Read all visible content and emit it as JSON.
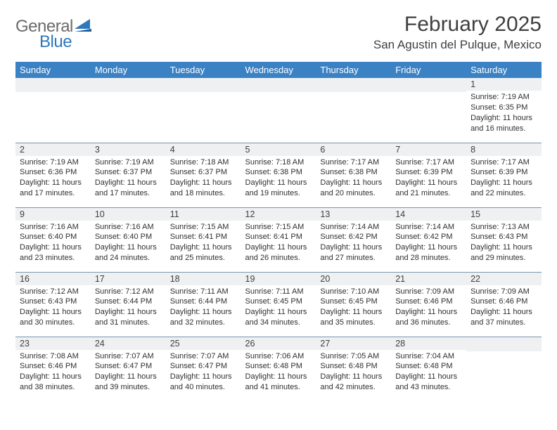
{
  "logo": {
    "general": "General",
    "blue": "Blue"
  },
  "title": "February 2025",
  "location": "San Agustin del Pulque, Mexico",
  "colors": {
    "header_bg": "#3b82c4",
    "header_text": "#ffffff",
    "daynum_bg": "#eef0f1",
    "rule": "#7a95ad",
    "logo_gray": "#6b6b6b",
    "logo_blue": "#2f78bd",
    "text": "#303030"
  },
  "weekdays": [
    "Sunday",
    "Monday",
    "Tuesday",
    "Wednesday",
    "Thursday",
    "Friday",
    "Saturday"
  ],
  "weeks": [
    [
      null,
      null,
      null,
      null,
      null,
      null,
      {
        "d": "1",
        "sr": "7:19 AM",
        "ss": "6:35 PM",
        "dl": "11 hours and 16 minutes."
      }
    ],
    [
      {
        "d": "2",
        "sr": "7:19 AM",
        "ss": "6:36 PM",
        "dl": "11 hours and 17 minutes."
      },
      {
        "d": "3",
        "sr": "7:19 AM",
        "ss": "6:37 PM",
        "dl": "11 hours and 17 minutes."
      },
      {
        "d": "4",
        "sr": "7:18 AM",
        "ss": "6:37 PM",
        "dl": "11 hours and 18 minutes."
      },
      {
        "d": "5",
        "sr": "7:18 AM",
        "ss": "6:38 PM",
        "dl": "11 hours and 19 minutes."
      },
      {
        "d": "6",
        "sr": "7:17 AM",
        "ss": "6:38 PM",
        "dl": "11 hours and 20 minutes."
      },
      {
        "d": "7",
        "sr": "7:17 AM",
        "ss": "6:39 PM",
        "dl": "11 hours and 21 minutes."
      },
      {
        "d": "8",
        "sr": "7:17 AM",
        "ss": "6:39 PM",
        "dl": "11 hours and 22 minutes."
      }
    ],
    [
      {
        "d": "9",
        "sr": "7:16 AM",
        "ss": "6:40 PM",
        "dl": "11 hours and 23 minutes."
      },
      {
        "d": "10",
        "sr": "7:16 AM",
        "ss": "6:40 PM",
        "dl": "11 hours and 24 minutes."
      },
      {
        "d": "11",
        "sr": "7:15 AM",
        "ss": "6:41 PM",
        "dl": "11 hours and 25 minutes."
      },
      {
        "d": "12",
        "sr": "7:15 AM",
        "ss": "6:41 PM",
        "dl": "11 hours and 26 minutes."
      },
      {
        "d": "13",
        "sr": "7:14 AM",
        "ss": "6:42 PM",
        "dl": "11 hours and 27 minutes."
      },
      {
        "d": "14",
        "sr": "7:14 AM",
        "ss": "6:42 PM",
        "dl": "11 hours and 28 minutes."
      },
      {
        "d": "15",
        "sr": "7:13 AM",
        "ss": "6:43 PM",
        "dl": "11 hours and 29 minutes."
      }
    ],
    [
      {
        "d": "16",
        "sr": "7:12 AM",
        "ss": "6:43 PM",
        "dl": "11 hours and 30 minutes."
      },
      {
        "d": "17",
        "sr": "7:12 AM",
        "ss": "6:44 PM",
        "dl": "11 hours and 31 minutes."
      },
      {
        "d": "18",
        "sr": "7:11 AM",
        "ss": "6:44 PM",
        "dl": "11 hours and 32 minutes."
      },
      {
        "d": "19",
        "sr": "7:11 AM",
        "ss": "6:45 PM",
        "dl": "11 hours and 34 minutes."
      },
      {
        "d": "20",
        "sr": "7:10 AM",
        "ss": "6:45 PM",
        "dl": "11 hours and 35 minutes."
      },
      {
        "d": "21",
        "sr": "7:09 AM",
        "ss": "6:46 PM",
        "dl": "11 hours and 36 minutes."
      },
      {
        "d": "22",
        "sr": "7:09 AM",
        "ss": "6:46 PM",
        "dl": "11 hours and 37 minutes."
      }
    ],
    [
      {
        "d": "23",
        "sr": "7:08 AM",
        "ss": "6:46 PM",
        "dl": "11 hours and 38 minutes."
      },
      {
        "d": "24",
        "sr": "7:07 AM",
        "ss": "6:47 PM",
        "dl": "11 hours and 39 minutes."
      },
      {
        "d": "25",
        "sr": "7:07 AM",
        "ss": "6:47 PM",
        "dl": "11 hours and 40 minutes."
      },
      {
        "d": "26",
        "sr": "7:06 AM",
        "ss": "6:48 PM",
        "dl": "11 hours and 41 minutes."
      },
      {
        "d": "27",
        "sr": "7:05 AM",
        "ss": "6:48 PM",
        "dl": "11 hours and 42 minutes."
      },
      {
        "d": "28",
        "sr": "7:04 AM",
        "ss": "6:48 PM",
        "dl": "11 hours and 43 minutes."
      },
      null
    ]
  ],
  "labels": {
    "sunrise": "Sunrise:",
    "sunset": "Sunset:",
    "daylight": "Daylight:"
  }
}
